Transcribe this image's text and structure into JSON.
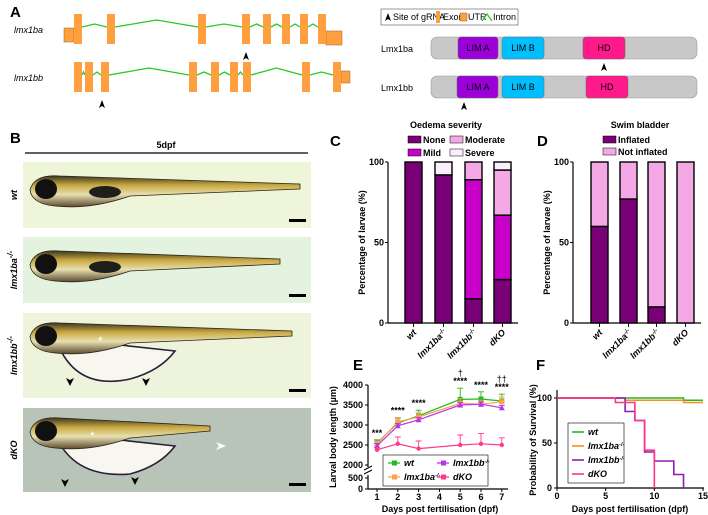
{
  "panel_labels": {
    "a": "A",
    "b": "B",
    "c": "C",
    "d": "D",
    "e": "E",
    "f": "F"
  },
  "panel_a": {
    "genes": [
      {
        "name": "lmx1ba",
        "exon_count": 8,
        "utr": [
          "left",
          "right"
        ]
      },
      {
        "name": "lmx1bb",
        "exon_count": 9,
        "utr": [
          "right"
        ]
      }
    ],
    "legend": {
      "grna": "Site of gRNA",
      "exon": "Exon",
      "utr": "UTR",
      "intron": "Intron"
    },
    "proteins": [
      {
        "name": "Lmx1ba",
        "domains": [
          "LIM A",
          "LIM B",
          "HD"
        ],
        "grna_site": "HD"
      },
      {
        "name": "Lmx1bb",
        "domains": [
          "LIM A",
          "LIM B",
          "HD"
        ],
        "grna_site": "LIM A"
      }
    ],
    "colors": {
      "exon": "#ffa040",
      "intron": "#22cc22",
      "lim_a": "#9b00d9",
      "lim_b": "#00bfff",
      "hd": "#ff1a8c",
      "protein": "#c8c8c8"
    }
  },
  "panel_b": {
    "title": "5dpf",
    "rows": [
      {
        "genotype": "wt",
        "sup": ""
      },
      {
        "genotype": "lmx1ba",
        "sup": "-/-"
      },
      {
        "genotype": "lmx1bb",
        "sup": "-/-"
      },
      {
        "genotype": "dKO",
        "sup": ""
      }
    ]
  },
  "genotypes": [
    {
      "label": "wt",
      "sup": ""
    },
    {
      "label": "lmx1ba",
      "sup": "-/-"
    },
    {
      "label": "lmx1bb",
      "sup": "-/-"
    },
    {
      "label": "dKO",
      "sup": ""
    }
  ],
  "chart_data": [
    {
      "id": "C",
      "type": "bar",
      "stacked": true,
      "title": "Oedema severity",
      "ylabel": "Percentage of larvae (%)",
      "ylim": [
        0,
        100
      ],
      "yticks": [
        0,
        50,
        100
      ],
      "categories": [
        "wt",
        "lmx1ba-/-",
        "lmx1bb-/-",
        "dKO"
      ],
      "series": [
        {
          "name": "None",
          "color": "#7a0077",
          "values": [
            100,
            92,
            15,
            27
          ]
        },
        {
          "name": "Mild",
          "color": "#c800c8",
          "values": [
            0,
            0,
            74,
            40
          ]
        },
        {
          "name": "Moderate",
          "color": "#f5a8e6",
          "values": [
            0,
            0,
            11,
            28
          ]
        },
        {
          "name": "Severe",
          "color": "#fbeefb",
          "values": [
            0,
            8,
            0,
            5
          ]
        }
      ],
      "legend": "top"
    },
    {
      "id": "D",
      "type": "bar",
      "stacked": true,
      "title": "Swim bladder",
      "ylabel": "Percentage of larvae (%)",
      "ylim": [
        0,
        100
      ],
      "yticks": [
        0,
        50,
        100
      ],
      "categories": [
        "wt",
        "lmx1ba-/-",
        "lmx1bb-/-",
        "dKO"
      ],
      "series": [
        {
          "name": "Inflated",
          "color": "#7a0077",
          "values": [
            60,
            77,
            10,
            0
          ]
        },
        {
          "name": "Not inflated",
          "color": "#f5a8e6",
          "values": [
            40,
            23,
            90,
            100
          ]
        }
      ],
      "legend": "top"
    },
    {
      "id": "E",
      "type": "line",
      "xlabel": "Days post fertilisation (dpf)",
      "ylabel": "Larval body length (µm)",
      "x": [
        1,
        2,
        3,
        5,
        6,
        7
      ],
      "xticks": [
        1,
        2,
        3,
        4,
        5,
        6,
        7
      ],
      "yticks": [
        0,
        500,
        2000,
        2500,
        3000,
        3500,
        4000
      ],
      "ybreak": [
        500,
        2000
      ],
      "series": [
        {
          "name": "wt",
          "color": "#22bb22",
          "marker": "square",
          "values": [
            2550,
            3050,
            3230,
            3640,
            3650,
            3600
          ],
          "error": [
            80,
            120,
            140,
            280,
            180,
            170
          ]
        },
        {
          "name": "lmx1ba-/-",
          "color": "#ffa050",
          "marker": "square",
          "values": [
            2520,
            3080,
            3200,
            3540,
            3520,
            3580
          ],
          "error": [
            70,
            110,
            120,
            120,
            100,
            120
          ]
        },
        {
          "name": "lmx1bb-/-",
          "color": "#bb33ee",
          "marker": "triangle",
          "values": [
            2480,
            2980,
            3130,
            3500,
            3520,
            3430
          ],
          "error": [
            60,
            60,
            60,
            60,
            50,
            60
          ]
        },
        {
          "name": "dKO",
          "color": "#ff3a8c",
          "marker": "star",
          "values": [
            2380,
            2530,
            2410,
            2500,
            2530,
            2500
          ],
          "error": [
            50,
            170,
            190,
            250,
            260,
            180
          ]
        }
      ],
      "significance": [
        {
          "x": 1,
          "text": "***"
        },
        {
          "x": 2,
          "text": "****"
        },
        {
          "x": 3,
          "text": "****"
        },
        {
          "x": 5,
          "text": "****",
          "extra": "†"
        },
        {
          "x": 6,
          "text": "****"
        },
        {
          "x": 7,
          "text": "****",
          "extra": "††"
        }
      ],
      "legend": "bottom"
    },
    {
      "id": "F",
      "type": "line",
      "step": true,
      "xlabel": "Days post fertilisation (dpf)",
      "ylabel": "Probability of Survival (%)",
      "xlim": [
        0,
        15
      ],
      "xticks": [
        0,
        5,
        10,
        15
      ],
      "ylim": [
        0,
        100
      ],
      "yticks": [
        0,
        50,
        100
      ],
      "series": [
        {
          "name": "wt",
          "color": "#22bb22",
          "points": [
            [
              0,
              100
            ],
            [
              13,
              100
            ],
            [
              13,
              97.5
            ],
            [
              15,
              97.5
            ]
          ]
        },
        {
          "name": "lmx1ba-/-",
          "color": "#ff8c1a",
          "points": [
            [
              0,
              100
            ],
            [
              7,
              100
            ],
            [
              7,
              97.5
            ],
            [
              13,
              97.5
            ],
            [
              13,
              95
            ],
            [
              15,
              95
            ]
          ]
        },
        {
          "name": "lmx1bb-/-",
          "color": "#8a1fb0",
          "points": [
            [
              0,
              100
            ],
            [
              7,
              100
            ],
            [
              7,
              85
            ],
            [
              8,
              85
            ],
            [
              8,
              75
            ],
            [
              9,
              75
            ],
            [
              9,
              40
            ],
            [
              10,
              40
            ],
            [
              10,
              30
            ],
            [
              12,
              30
            ],
            [
              12,
              15
            ],
            [
              13,
              15
            ],
            [
              13,
              0
            ]
          ]
        },
        {
          "name": "dKO",
          "color": "#ff3388",
          "points": [
            [
              0,
              100
            ],
            [
              6,
              100
            ],
            [
              6,
              95
            ],
            [
              8,
              95
            ],
            [
              8,
              75
            ],
            [
              9,
              75
            ],
            [
              9,
              42
            ],
            [
              10,
              42
            ],
            [
              10,
              0
            ]
          ]
        }
      ],
      "legend": "left"
    }
  ]
}
